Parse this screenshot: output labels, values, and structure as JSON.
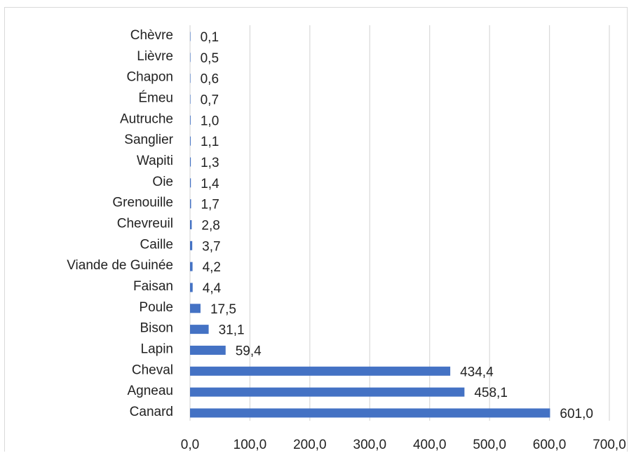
{
  "chart_data": {
    "type": "bar",
    "orientation": "horizontal",
    "title": "",
    "xlabel": "",
    "ylabel": "",
    "categories": [
      "Chèvre",
      "Lièvre",
      "Chapon",
      "Émeu",
      "Autruche",
      "Sanglier",
      "Wapiti",
      "Oie",
      "Grenouille",
      "Chevreuil",
      "Caille",
      "Viande de Guinée",
      "Faisan",
      "Poule",
      "Bison",
      "Lapin",
      "Cheval",
      "Agneau",
      "Canard"
    ],
    "values": [
      0.1,
      0.5,
      0.6,
      0.7,
      1.0,
      1.1,
      1.3,
      1.4,
      1.7,
      2.8,
      3.7,
      4.2,
      4.4,
      17.5,
      31.1,
      59.4,
      434.4,
      458.1,
      601.0
    ],
    "value_labels": [
      "0,1",
      "0,5",
      "0,6",
      "0,7",
      "1,0",
      "1,1",
      "1,3",
      "1,4",
      "1,7",
      "2,8",
      "3,7",
      "4,2",
      "4,4",
      "17,5",
      "31,1",
      "59,4",
      "434,4",
      "458,1",
      "601,0"
    ],
    "xlim": [
      0,
      700
    ],
    "ticks": [
      0,
      100,
      200,
      300,
      400,
      500,
      600,
      700
    ],
    "tick_labels": [
      "0,0",
      "100,0",
      "200,0",
      "300,0",
      "400,0",
      "500,0",
      "600,0",
      "700,0"
    ],
    "grid": true,
    "bar_color": "#4472c4",
    "grid_color": "#d9d9d9"
  }
}
